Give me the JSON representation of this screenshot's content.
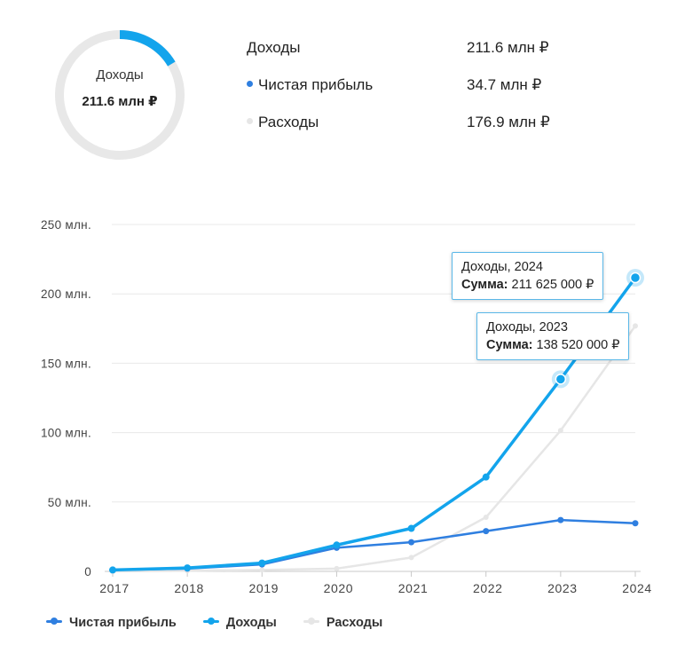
{
  "colors": {
    "income": "#13a4ec",
    "profit": "#2f7fe0",
    "expenses": "#e6e6e6",
    "grid": "#e8e8e8",
    "donut_track": "#e8e8e8"
  },
  "summary": {
    "donut": {
      "title": "Доходы",
      "value": "211.6 млн ₽",
      "fraction": 0.164
    },
    "rows": [
      {
        "label": "Доходы",
        "value": "211.6 млн ₽",
        "dot": ""
      },
      {
        "label": "Чистая прибыль",
        "value": "34.7 млн ₽",
        "dot": "#2f7fe0"
      },
      {
        "label": "Расходы",
        "value": "176.9 млн ₽",
        "dot": "#e6e6e6"
      }
    ]
  },
  "tooltips": [
    {
      "heading": "Доходы, 2024",
      "sum_label": "Сумма",
      "sum_value": "211 625 000 ₽"
    },
    {
      "heading": "Доходы, 2023",
      "sum_label": "Сумма",
      "sum_value": "138 520 000 ₽"
    }
  ],
  "chart_data": {
    "type": "line",
    "x": [
      "2017",
      "2018",
      "2019",
      "2020",
      "2021",
      "2022",
      "2023",
      "2024"
    ],
    "ylim": [
      0,
      250
    ],
    "y_ticks": [
      0,
      50,
      100,
      150,
      200,
      250
    ],
    "y_tick_labels": [
      "0",
      "50 млн.",
      "100 млн.",
      "150 млн.",
      "200 млн.",
      "250 млн."
    ],
    "grid": true,
    "legend_position": "bottom-left",
    "series": [
      {
        "name": "Чистая прибыль",
        "key": "profit",
        "values": [
          1,
          2,
          5,
          17,
          21,
          29,
          37,
          34.7
        ]
      },
      {
        "name": "Доходы",
        "key": "income",
        "values": [
          1,
          2.5,
          6,
          19,
          31,
          68,
          138.52,
          211.625
        ]
      },
      {
        "name": "Расходы",
        "key": "expenses",
        "values": [
          0,
          0.5,
          1,
          2,
          10,
          39,
          101.5,
          176.9
        ]
      }
    ],
    "highlighted_points": [
      {
        "series": "income",
        "x": "2023"
      },
      {
        "series": "income",
        "x": "2024"
      }
    ]
  }
}
